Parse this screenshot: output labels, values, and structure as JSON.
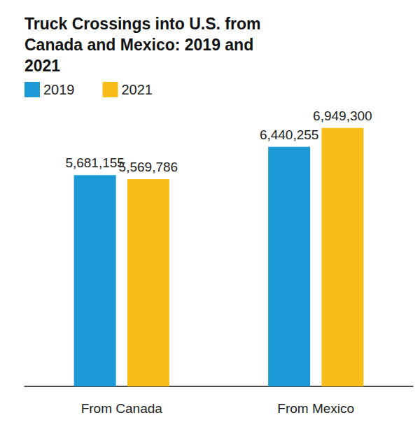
{
  "chart_data": {
    "type": "bar",
    "title": "Truck Crossings into U.S. from Canada and Mexico: 2019 and 2021",
    "categories": [
      "From Canada",
      "From Mexico"
    ],
    "series": [
      {
        "name": "2019",
        "color": "#1b9ad7",
        "values": [
          5681155,
          6440255
        ],
        "value_labels": [
          "5,681,155",
          "6,440,255"
        ]
      },
      {
        "name": "2021",
        "color": "#f8bd19",
        "values": [
          5569786,
          6949300
        ],
        "value_labels": [
          "5,569,786",
          "6,949,300"
        ]
      }
    ],
    "ylim": [
      0,
      8000000
    ],
    "grid": false,
    "legend": "top-left",
    "data_labels": true,
    "tick_labels": "x"
  }
}
